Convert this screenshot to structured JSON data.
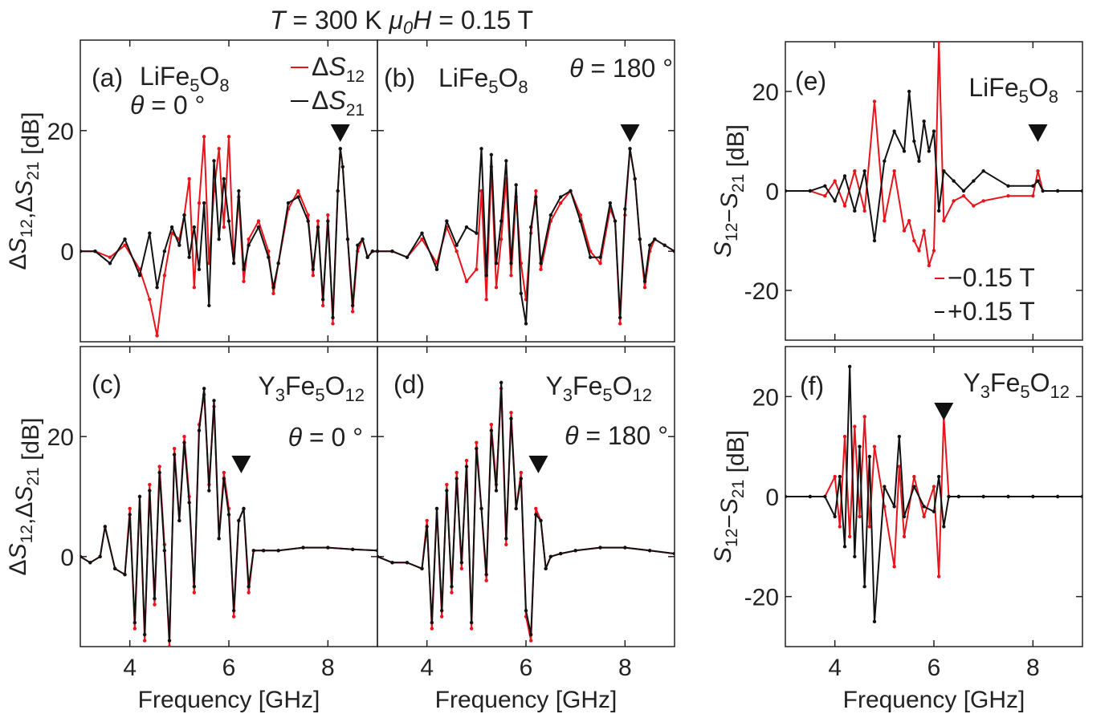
{
  "figure": {
    "title": "T = 300 K  μ0H = 0.15 T",
    "title_parts": [
      "T",
      " = 300 K  ",
      "μ",
      "0",
      "H",
      " = 0.15 T"
    ]
  },
  "chart_data": [
    {
      "type": "line",
      "panel_label": "(a)",
      "material": "LiFe5O8",
      "angle_label": "θ = 0 °",
      "xlim": [
        3,
        9
      ],
      "ylim": [
        -15,
        35
      ],
      "xticks": [
        4,
        6,
        8
      ],
      "yticks": [
        0,
        20
      ],
      "ylabel": "ΔS12,ΔS21 [dB]",
      "xlabel": "",
      "legend": [
        {
          "name": "ΔS12",
          "color": "#e8141c"
        },
        {
          "name": "ΔS21",
          "color": "#111111"
        }
      ],
      "marker_x": 8.25,
      "series": [
        {
          "name": "ΔS12",
          "color": "#e8141c",
          "x": [
            3.0,
            3.3,
            3.6,
            3.9,
            4.2,
            4.4,
            4.55,
            4.7,
            4.85,
            5.0,
            5.1,
            5.2,
            5.3,
            5.4,
            5.5,
            5.6,
            5.7,
            5.8,
            5.9,
            6.0,
            6.1,
            6.2,
            6.3,
            6.4,
            6.6,
            6.8,
            6.9,
            7.0,
            7.2,
            7.4,
            7.6,
            7.7,
            7.8,
            7.9,
            8.0,
            8.1,
            8.2,
            8.25,
            8.3,
            8.4,
            8.5,
            8.6,
            8.7,
            8.8,
            8.9,
            9.0
          ],
          "y": [
            0,
            0,
            -1,
            1,
            -3,
            -8,
            -14,
            -4,
            3,
            2,
            6,
            12,
            -6,
            8,
            19,
            -2,
            10,
            17,
            4,
            19,
            -2,
            9,
            -5,
            2,
            5,
            0,
            -7,
            -2,
            7,
            10,
            6,
            -4,
            5,
            -9,
            6,
            -12,
            10,
            17,
            14,
            2,
            -10,
            0,
            2,
            -1,
            0,
            0
          ]
        },
        {
          "name": "ΔS21",
          "color": "#111111",
          "x": [
            3.0,
            3.3,
            3.6,
            3.9,
            4.2,
            4.4,
            4.55,
            4.7,
            4.85,
            5.0,
            5.1,
            5.2,
            5.3,
            5.4,
            5.5,
            5.6,
            5.7,
            5.8,
            5.9,
            6.0,
            6.1,
            6.2,
            6.3,
            6.4,
            6.6,
            6.8,
            6.9,
            7.0,
            7.2,
            7.4,
            7.6,
            7.7,
            7.8,
            7.9,
            8.0,
            8.1,
            8.2,
            8.25,
            8.3,
            8.4,
            8.5,
            8.6,
            8.7,
            8.8,
            8.9,
            9.0
          ],
          "y": [
            0,
            0,
            -2,
            2,
            -4,
            3,
            -6,
            0,
            4,
            1,
            6,
            -1,
            4,
            -3,
            8,
            -9,
            15,
            2,
            12,
            5,
            -2,
            10,
            -3,
            1,
            4,
            -1,
            -6,
            -2,
            8,
            9,
            5,
            -3,
            4,
            -8,
            5,
            -11,
            10,
            17,
            14,
            2,
            -9,
            1,
            2,
            -1,
            0,
            0
          ]
        }
      ]
    },
    {
      "type": "line",
      "panel_label": "(b)",
      "material": "LiFe5O8",
      "angle_label": "θ = 180 °",
      "xlim": [
        3,
        9
      ],
      "ylim": [
        -15,
        35
      ],
      "xticks": [
        4,
        6,
        8
      ],
      "yticks": [
        0,
        20
      ],
      "xlabel": "",
      "ylabel": "",
      "marker_x": 8.1,
      "series": [
        {
          "name": "ΔS12",
          "color": "#e8141c",
          "x": [
            3.0,
            3.3,
            3.6,
            3.9,
            4.2,
            4.4,
            4.6,
            4.8,
            5.0,
            5.1,
            5.2,
            5.3,
            5.4,
            5.5,
            5.6,
            5.7,
            5.8,
            5.9,
            6.0,
            6.1,
            6.2,
            6.3,
            6.5,
            6.7,
            6.9,
            7.1,
            7.3,
            7.5,
            7.7,
            7.8,
            7.9,
            8.0,
            8.1,
            8.2,
            8.3,
            8.4,
            8.5,
            8.6,
            8.8,
            9.0
          ],
          "y": [
            0,
            0,
            -1,
            2,
            -2,
            4,
            0,
            -5,
            -3,
            10,
            -8,
            14,
            -6,
            2,
            12,
            -4,
            9,
            -2,
            -8,
            3,
            10,
            -3,
            5,
            8,
            10,
            6,
            0,
            -2,
            7,
            5,
            -12,
            6,
            17,
            12,
            2,
            -6,
            0,
            2,
            1,
            0
          ]
        },
        {
          "name": "ΔS21",
          "color": "#111111",
          "x": [
            3.0,
            3.3,
            3.6,
            3.9,
            4.2,
            4.4,
            4.6,
            4.8,
            5.0,
            5.1,
            5.2,
            5.3,
            5.4,
            5.5,
            5.6,
            5.7,
            5.8,
            5.9,
            6.0,
            6.1,
            6.2,
            6.3,
            6.5,
            6.7,
            6.9,
            7.1,
            7.3,
            7.5,
            7.7,
            7.8,
            7.9,
            8.0,
            8.1,
            8.2,
            8.3,
            8.4,
            8.5,
            8.6,
            8.8,
            9.0
          ],
          "y": [
            0,
            0,
            -1,
            3,
            -3,
            5,
            1,
            4,
            3,
            17,
            -4,
            16,
            -2,
            5,
            15,
            -2,
            11,
            -7,
            -12,
            4,
            9,
            -2,
            6,
            9,
            10,
            5,
            -1,
            -1,
            8,
            5,
            -11,
            7,
            17,
            12,
            2,
            -5,
            1,
            2,
            1,
            0
          ]
        }
      ]
    },
    {
      "type": "line",
      "panel_label": "(c)",
      "material": "Y3Fe5O12",
      "angle_label": "θ = 0 °",
      "xlim": [
        3,
        9
      ],
      "ylim": [
        -15,
        35
      ],
      "xticks": [
        4,
        6,
        8
      ],
      "yticks": [
        0,
        20
      ],
      "ylabel": "ΔS12,ΔS21 [dB]",
      "xlabel": "Frequency [GHz]",
      "marker_x": 6.25,
      "series": [
        {
          "name": "ΔS12",
          "color": "#e8141c",
          "x": [
            3.0,
            3.2,
            3.4,
            3.5,
            3.7,
            3.9,
            4.0,
            4.1,
            4.2,
            4.3,
            4.4,
            4.5,
            4.6,
            4.7,
            4.8,
            4.9,
            5.0,
            5.1,
            5.2,
            5.3,
            5.4,
            5.5,
            5.6,
            5.7,
            5.8,
            5.9,
            6.0,
            6.1,
            6.2,
            6.3,
            6.4,
            6.5,
            6.7,
            7.0,
            7.5,
            8.0,
            8.5,
            9.0
          ],
          "y": [
            0,
            -1,
            0,
            5,
            -2,
            -3,
            8,
            -12,
            10,
            -14,
            12,
            -8,
            15,
            2,
            -15,
            18,
            6,
            20,
            10,
            -6,
            22,
            27,
            12,
            25,
            3,
            14,
            8,
            -10,
            6,
            8,
            -6,
            1,
            1,
            1,
            1.5,
            1.5,
            1.2,
            1
          ]
        },
        {
          "name": "ΔS21",
          "color": "#111111",
          "x": [
            3.0,
            3.2,
            3.4,
            3.5,
            3.7,
            3.9,
            4.0,
            4.1,
            4.2,
            4.3,
            4.4,
            4.5,
            4.6,
            4.7,
            4.8,
            4.9,
            5.0,
            5.1,
            5.2,
            5.3,
            5.4,
            5.5,
            5.6,
            5.7,
            5.8,
            5.9,
            6.0,
            6.1,
            6.2,
            6.3,
            6.4,
            6.5,
            6.7,
            7.0,
            7.5,
            8.0,
            8.5,
            9.0
          ],
          "y": [
            0,
            -1,
            0,
            5,
            -2,
            -3,
            7,
            -11,
            10,
            -13,
            11,
            -7,
            14,
            1,
            -14,
            17,
            6,
            19,
            9,
            -5,
            21,
            28,
            11,
            26,
            3,
            13,
            7,
            -9,
            6,
            8,
            -5,
            1,
            1,
            1,
            1.5,
            1.5,
            1.2,
            1
          ]
        }
      ]
    },
    {
      "type": "line",
      "panel_label": "(d)",
      "material": "Y3Fe5O12",
      "angle_label": "θ = 180 °",
      "xlim": [
        3,
        9
      ],
      "ylim": [
        -15,
        35
      ],
      "xticks": [
        4,
        6,
        8
      ],
      "yticks": [
        0,
        20
      ],
      "xlabel": "Frequency [GHz]",
      "ylabel": "",
      "marker_x": 6.25,
      "series": [
        {
          "name": "ΔS12",
          "color": "#e8141c",
          "x": [
            3.0,
            3.3,
            3.6,
            3.9,
            4.0,
            4.1,
            4.2,
            4.3,
            4.4,
            4.5,
            4.6,
            4.7,
            4.8,
            4.9,
            5.0,
            5.1,
            5.2,
            5.3,
            5.4,
            5.5,
            5.6,
            5.7,
            5.8,
            5.9,
            6.0,
            6.1,
            6.2,
            6.3,
            6.4,
            6.5,
            6.7,
            7.0,
            7.5,
            8.0,
            8.5,
            9.0
          ],
          "y": [
            0,
            -1,
            -1,
            -2,
            6,
            -12,
            8,
            -10,
            12,
            -6,
            14,
            -2,
            16,
            -12,
            19,
            8,
            -4,
            22,
            12,
            28,
            2,
            24,
            8,
            14,
            -10,
            -14,
            8,
            6,
            -2,
            0,
            0.5,
            1,
            1.5,
            1.5,
            1,
            0.5
          ]
        },
        {
          "name": "ΔS21",
          "color": "#111111",
          "x": [
            3.0,
            3.3,
            3.6,
            3.9,
            4.0,
            4.1,
            4.2,
            4.3,
            4.4,
            4.5,
            4.6,
            4.7,
            4.8,
            4.9,
            5.0,
            5.1,
            5.2,
            5.3,
            5.4,
            5.5,
            5.6,
            5.7,
            5.8,
            5.9,
            6.0,
            6.1,
            6.2,
            6.3,
            6.4,
            6.5,
            6.7,
            7.0,
            7.5,
            8.0,
            8.5,
            9.0
          ],
          "y": [
            0,
            -1,
            -1,
            -2,
            5,
            -11,
            8,
            -9,
            11,
            -5,
            13,
            -1,
            15,
            -11,
            18,
            8,
            -3,
            21,
            11,
            29,
            3,
            23,
            8,
            13,
            -9,
            -13,
            7,
            6,
            -2,
            0,
            0.5,
            1,
            1.5,
            1.5,
            1,
            0.5
          ]
        }
      ]
    },
    {
      "type": "line",
      "panel_label": "(e)",
      "material": "LiFe5O8",
      "xlim": [
        3,
        9
      ],
      "ylim": [
        -30,
        30
      ],
      "xticks": [
        4,
        6,
        8
      ],
      "yticks": [
        -20,
        0,
        20
      ],
      "ylabel": "S12−S21 [dB]",
      "xlabel": "",
      "legend": [
        {
          "name": "−0.15 T",
          "color": "#e8141c"
        },
        {
          "name": "+0.15 T",
          "color": "#111111"
        }
      ],
      "marker_x": 8.1,
      "series": [
        {
          "name": "−0.15 T",
          "color": "#e8141c",
          "x": [
            3.0,
            3.5,
            3.8,
            4.0,
            4.2,
            4.4,
            4.6,
            4.8,
            5.0,
            5.2,
            5.4,
            5.5,
            5.6,
            5.7,
            5.8,
            5.9,
            6.0,
            6.1,
            6.2,
            6.4,
            6.6,
            6.8,
            7.0,
            7.5,
            8.0,
            8.1,
            8.2,
            8.5,
            9.0
          ],
          "y": [
            0,
            0,
            -1,
            2,
            -3,
            4,
            -4,
            18,
            -6,
            4,
            -8,
            -6,
            -10,
            -12,
            -8,
            -15,
            -12,
            30,
            -6,
            -2,
            -1,
            -3,
            -2,
            -1,
            -1,
            4,
            0,
            0,
            0
          ]
        },
        {
          "name": "+0.15 T",
          "color": "#111111",
          "x": [
            3.0,
            3.5,
            3.8,
            4.0,
            4.2,
            4.4,
            4.6,
            4.8,
            5.0,
            5.2,
            5.4,
            5.5,
            5.6,
            5.7,
            5.8,
            5.9,
            6.0,
            6.1,
            6.2,
            6.4,
            6.6,
            6.8,
            7.0,
            7.5,
            8.0,
            8.1,
            8.2,
            8.5,
            9.0
          ],
          "y": [
            0,
            0,
            1,
            -2,
            3,
            -4,
            4,
            -10,
            6,
            12,
            8,
            20,
            10,
            6,
            14,
            8,
            12,
            -4,
            4,
            2,
            0,
            2,
            4,
            1,
            1,
            2,
            0,
            0,
            0
          ]
        }
      ]
    },
    {
      "type": "line",
      "panel_label": "(f)",
      "material": "Y3Fe5O12",
      "xlim": [
        3,
        9
      ],
      "ylim": [
        -30,
        30
      ],
      "xticks": [
        4,
        6,
        8
      ],
      "yticks": [
        -20,
        0,
        20
      ],
      "ylabel": "S12−S21 [dB]",
      "xlabel": "Frequency [GHz]",
      "marker_x": 6.2,
      "series": [
        {
          "name": "−0.15 T",
          "color": "#e8141c",
          "x": [
            3.0,
            3.5,
            3.8,
            4.0,
            4.1,
            4.2,
            4.3,
            4.4,
            4.5,
            4.6,
            4.7,
            4.8,
            5.0,
            5.2,
            5.3,
            5.4,
            5.6,
            5.8,
            6.0,
            6.1,
            6.2,
            6.3,
            6.5,
            7.0,
            7.5,
            8.0,
            8.5,
            9.0
          ],
          "y": [
            0,
            0,
            0,
            4,
            -6,
            12,
            -8,
            14,
            -4,
            16,
            -6,
            10,
            -2,
            -14,
            6,
            -8,
            4,
            -4,
            2,
            -16,
            16,
            0,
            0,
            0,
            0,
            0,
            0,
            0
          ]
        },
        {
          "name": "+0.15 T",
          "color": "#111111",
          "x": [
            3.0,
            3.5,
            3.8,
            4.0,
            4.1,
            4.2,
            4.3,
            4.4,
            4.5,
            4.6,
            4.7,
            4.8,
            5.0,
            5.2,
            5.3,
            5.4,
            5.6,
            5.8,
            6.0,
            6.1,
            6.2,
            6.3,
            6.5,
            7.0,
            7.5,
            8.0,
            8.5,
            9.0
          ],
          "y": [
            0,
            0,
            0,
            -4,
            4,
            -10,
            26,
            -12,
            10,
            -18,
            8,
            -25,
            2,
            -2,
            12,
            -4,
            2,
            -2,
            -3,
            4,
            -6,
            0,
            0,
            0,
            0,
            0,
            0,
            0
          ]
        }
      ]
    }
  ]
}
